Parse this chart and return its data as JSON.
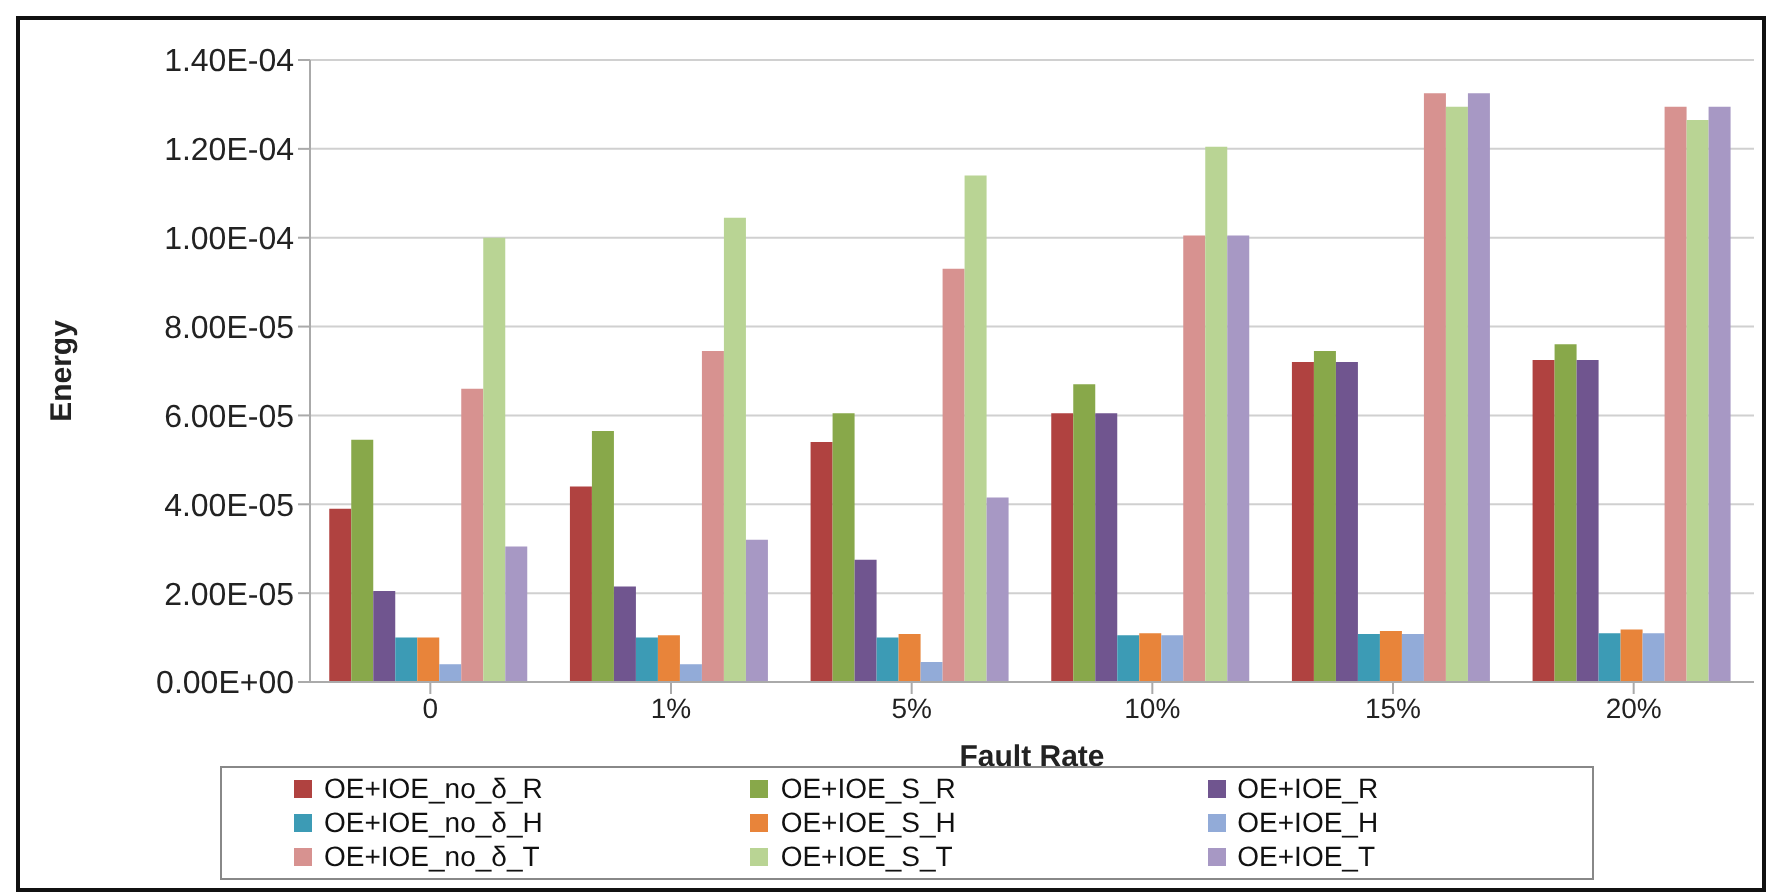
{
  "chart_data": {
    "type": "bar",
    "xlabel": "Fault Rate",
    "ylabel": "Energy",
    "categories": [
      "0",
      "1%",
      "5%",
      "10%",
      "15%",
      "20%"
    ],
    "series": [
      {
        "name": "OE+IOE_no_δ_R",
        "color": "#b04240",
        "values": [
          3.9e-05,
          4.4e-05,
          5.4e-05,
          6.05e-05,
          7.2e-05,
          7.25e-05
        ]
      },
      {
        "name": "OE+IOE_S_R",
        "color": "#88a84a",
        "values": [
          5.45e-05,
          5.65e-05,
          6.05e-05,
          6.7e-05,
          7.45e-05,
          7.6e-05
        ]
      },
      {
        "name": "OE+IOE_R",
        "color": "#70558f",
        "values": [
          2.05e-05,
          2.15e-05,
          2.75e-05,
          6.05e-05,
          7.2e-05,
          7.25e-05
        ]
      },
      {
        "name": "OE+IOE_no_δ_H",
        "color": "#3c9bb5",
        "values": [
          1e-05,
          1e-05,
          1e-05,
          1.05e-05,
          1.08e-05,
          1.1e-05
        ]
      },
      {
        "name": "OE+IOE_S_H",
        "color": "#e8843a",
        "values": [
          1e-05,
          1.05e-05,
          1.08e-05,
          1.1e-05,
          1.15e-05,
          1.18e-05
        ]
      },
      {
        "name": "OE+IOE_H",
        "color": "#92abd8",
        "values": [
          4e-06,
          4e-06,
          4.5e-06,
          1.05e-05,
          1.08e-05,
          1.1e-05
        ]
      },
      {
        "name": "OE+IOE_no_δ_T",
        "color": "#d79290",
        "values": [
          6.6e-05,
          7.45e-05,
          9.3e-05,
          0.0001005,
          0.0001325,
          0.0001295
        ]
      },
      {
        "name": "OE+IOE_S_T",
        "color": "#b9d494",
        "values": [
          0.0001,
          0.0001045,
          0.000114,
          0.0001205,
          0.0001295,
          0.0001265
        ]
      },
      {
        "name": "OE+IOE_T",
        "color": "#a798c4",
        "values": [
          3.05e-05,
          3.2e-05,
          4.15e-05,
          0.0001005,
          0.0001325,
          0.0001295
        ]
      }
    ],
    "ylim": [
      0,
      0.00014
    ],
    "yticks": [
      {
        "value": 0,
        "label": "0.00E+00"
      },
      {
        "value": 2e-05,
        "label": "2.00E-05"
      },
      {
        "value": 4e-05,
        "label": "4.00E-05"
      },
      {
        "value": 6e-05,
        "label": "6.00E-05"
      },
      {
        "value": 8e-05,
        "label": "8.00E-05"
      },
      {
        "value": 0.0001,
        "label": "1.00E-04"
      },
      {
        "value": 0.00012,
        "label": "1.20E-04"
      },
      {
        "value": 0.00014,
        "label": "1.40E-04"
      }
    ],
    "grid": "y",
    "legend": "bottom"
  }
}
